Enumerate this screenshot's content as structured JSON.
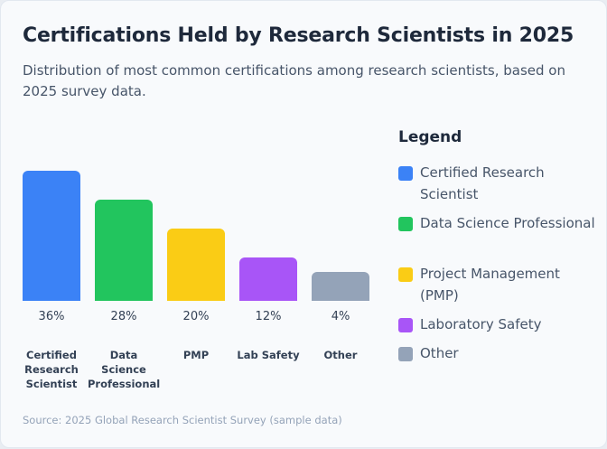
{
  "chart_data": {
    "type": "bar",
    "title": "Certifications Held by Research Scientists in 2025",
    "subtitle": "Distribution of most common certifications among research scientists, based on 2025 survey data.",
    "categories": [
      "Certified Research Scientist",
      "Data Science Professional",
      "PMP",
      "Lab Safety",
      "Other"
    ],
    "values": [
      36,
      28,
      20,
      12,
      4
    ],
    "value_labels": [
      "36%",
      "28%",
      "20%",
      "12%",
      "4%"
    ],
    "colors": [
      "#3b82f6",
      "#22c55e",
      "#facc15",
      "#a855f7",
      "#94a3b8"
    ],
    "unit": "%",
    "grid": false,
    "legend_position": "right",
    "legend": {
      "title": "Legend",
      "entries": [
        "Certified Research Scientist",
        "Data Science Professional",
        "Project Management (PMP)",
        "Laboratory Safety",
        "Other"
      ]
    },
    "source": "Source: 2025 Global Research Scientist Survey (sample data)"
  }
}
